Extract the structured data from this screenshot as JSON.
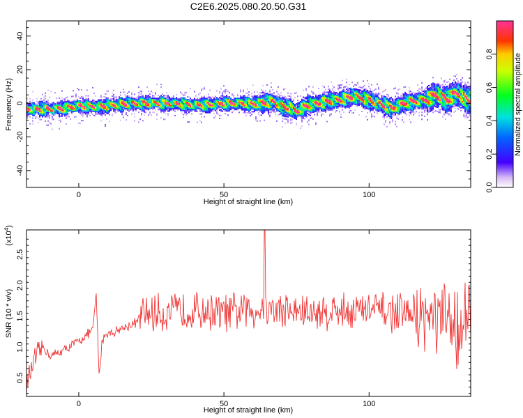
{
  "title": "C2E6.2025.080.20.50.G31",
  "chart_data": [
    {
      "type": "heatmap",
      "xlabel": "Height of straight line (km)",
      "ylabel": "Frequency (Hz)",
      "xlim": [
        -18,
        135
      ],
      "ylim": [
        -50,
        49
      ],
      "xticks": [
        0,
        50,
        100
      ],
      "yticks": [
        -40,
        -20,
        0,
        20,
        40
      ],
      "ridge": {
        "x": [
          -18,
          -10,
          -5,
          0,
          5,
          10,
          15,
          20,
          25,
          30,
          35,
          40,
          45,
          50,
          55,
          60,
          63,
          67,
          70,
          73,
          75,
          78,
          80,
          85,
          90,
          95,
          100,
          103,
          108,
          112,
          115,
          120,
          123,
          127,
          130,
          134
        ],
        "y": [
          -3.5,
          -3.5,
          -3,
          -1.5,
          -2,
          -1.5,
          -0.5,
          0,
          0,
          0,
          -0.5,
          -1,
          -1,
          0,
          0,
          -0.5,
          0,
          1,
          -2,
          -3,
          -5,
          -2,
          -1,
          1,
          2,
          4,
          2,
          0,
          -3,
          0,
          1,
          2,
          5,
          2,
          6,
          2
        ]
      },
      "colorbar": {
        "label": "Normalized spectral amplitude",
        "range": [
          0,
          1
        ],
        "ticks": [
          "0.0",
          "0.2",
          "0.4",
          "0.6",
          "0.8"
        ]
      }
    },
    {
      "type": "line",
      "xlabel": "Height of straight line (km)",
      "ylabel": "SNR (10 * v/v)",
      "y_multiplier": "(x10",
      "y_multiplier_exp": "4",
      "y_multiplier_close": ")",
      "xlim": [
        -18,
        135
      ],
      "ylim": [
        0.2,
        2.9
      ],
      "xticks": [
        0,
        50,
        100
      ],
      "yticks": [
        "0.5",
        "1.0",
        "1.5",
        "2.0",
        "2.5"
      ],
      "color": "#ee3333",
      "trend": {
        "x": [
          -18,
          -15,
          -12,
          -10,
          -5,
          0,
          3,
          5,
          6,
          7,
          8,
          9,
          12,
          15,
          20,
          21,
          25,
          30,
          40,
          50,
          60,
          70,
          80,
          90,
          100,
          110,
          118,
          125,
          130,
          135
        ],
        "y": [
          0.4,
          0.8,
          1.0,
          0.85,
          0.95,
          1.1,
          1.2,
          1.3,
          1.9,
          0.5,
          1.1,
          1.2,
          1.25,
          1.3,
          1.4,
          1.5,
          1.55,
          1.55,
          1.6,
          1.55,
          1.6,
          1.6,
          1.55,
          1.6,
          1.6,
          1.55,
          1.5,
          1.4,
          1.35,
          1.4
        ]
      },
      "peak": {
        "x": 64,
        "y": 2.9
      }
    }
  ]
}
